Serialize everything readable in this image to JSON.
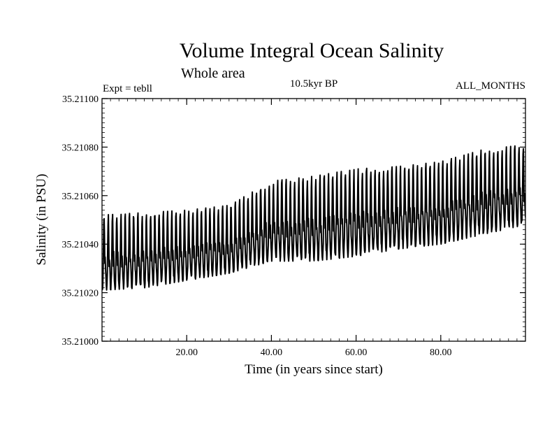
{
  "chart_data": {
    "type": "line",
    "title": "Volume Integral Ocean Salinity",
    "subtitle": "Whole area",
    "header_left": "Expt = tebll",
    "header_center": "10.5kyr BP",
    "header_right": "ALL_MONTHS",
    "xlabel": "Time (in years since start)",
    "ylabel": "Salinity (in PSU)",
    "xlim": [
      0,
      100
    ],
    "ylim": [
      35.21,
      35.211
    ],
    "x_ticks": [
      20,
      40,
      60,
      80
    ],
    "x_tick_labels": [
      "20.00",
      "40.00",
      "60.00",
      "80.00"
    ],
    "y_ticks": [
      35.21,
      35.2102,
      35.2104,
      35.2106,
      35.2108,
      35.211
    ],
    "y_tick_labels": [
      "35.21000",
      "35.21020",
      "35.21040",
      "35.21060",
      "35.21080",
      "35.21100"
    ],
    "grid": false,
    "series": [
      {
        "name": "Salinity",
        "color": "#000000",
        "description": "Monthly values with strong annual cycle; annual minima rise from ~35.21020 to ~35.21045, maxima from ~35.21050 to ~35.21082",
        "annual_trough": [
          [
            0,
            35.21021
          ],
          [
            10,
            35.21022
          ],
          [
            20,
            35.21025
          ],
          [
            30,
            35.21028
          ],
          [
            40,
            35.21033
          ],
          [
            50,
            35.21033
          ],
          [
            60,
            35.21035
          ],
          [
            70,
            35.21038
          ],
          [
            80,
            35.2104
          ],
          [
            90,
            35.21044
          ],
          [
            100,
            35.21048
          ]
        ],
        "annual_peak": [
          [
            0,
            35.21052
          ],
          [
            10,
            35.21053
          ],
          [
            20,
            35.21054
          ],
          [
            30,
            35.21056
          ],
          [
            40,
            35.21066
          ],
          [
            50,
            35.21068
          ],
          [
            60,
            35.21071
          ],
          [
            70,
            35.21072
          ],
          [
            80,
            35.21074
          ],
          [
            90,
            35.21079
          ],
          [
            100,
            35.21081
          ]
        ]
      }
    ]
  }
}
